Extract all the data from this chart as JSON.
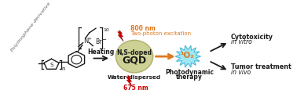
{
  "bg_color": "#ffffff",
  "fig_width": 3.78,
  "fig_height": 1.24,
  "dpi": 100,
  "polythiophene_label": "Polythiophene derivative",
  "heating_label": "Heating",
  "gqd_line1": "N,S-doped",
  "gqd_line2": "GQD",
  "water_label": "Water-dispersed",
  "nm800_label": "800 nm",
  "twophoton_label": "Two-photon excitation",
  "nm675_label": "675 nm",
  "photodynamic_label1": "Photodynamic",
  "photodynamic_label2": "therapy",
  "cytotox_label1": "Cytotoxicity",
  "cytotox_label2": "in vitro",
  "tumor_label1": "Tumor treatment",
  "tumor_label2": "in vivo",
  "o2_label": "¹O₂",
  "orange_color": "#E07820",
  "red_color": "#CC0000",
  "dark_color": "#1a1a1a",
  "gqd_fill": "#c8cc8a",
  "o2_fill": "#a0e8f0",
  "arrow_orange": "#E07820",
  "gray_color": "#666666",
  "italic_color": "#333333"
}
